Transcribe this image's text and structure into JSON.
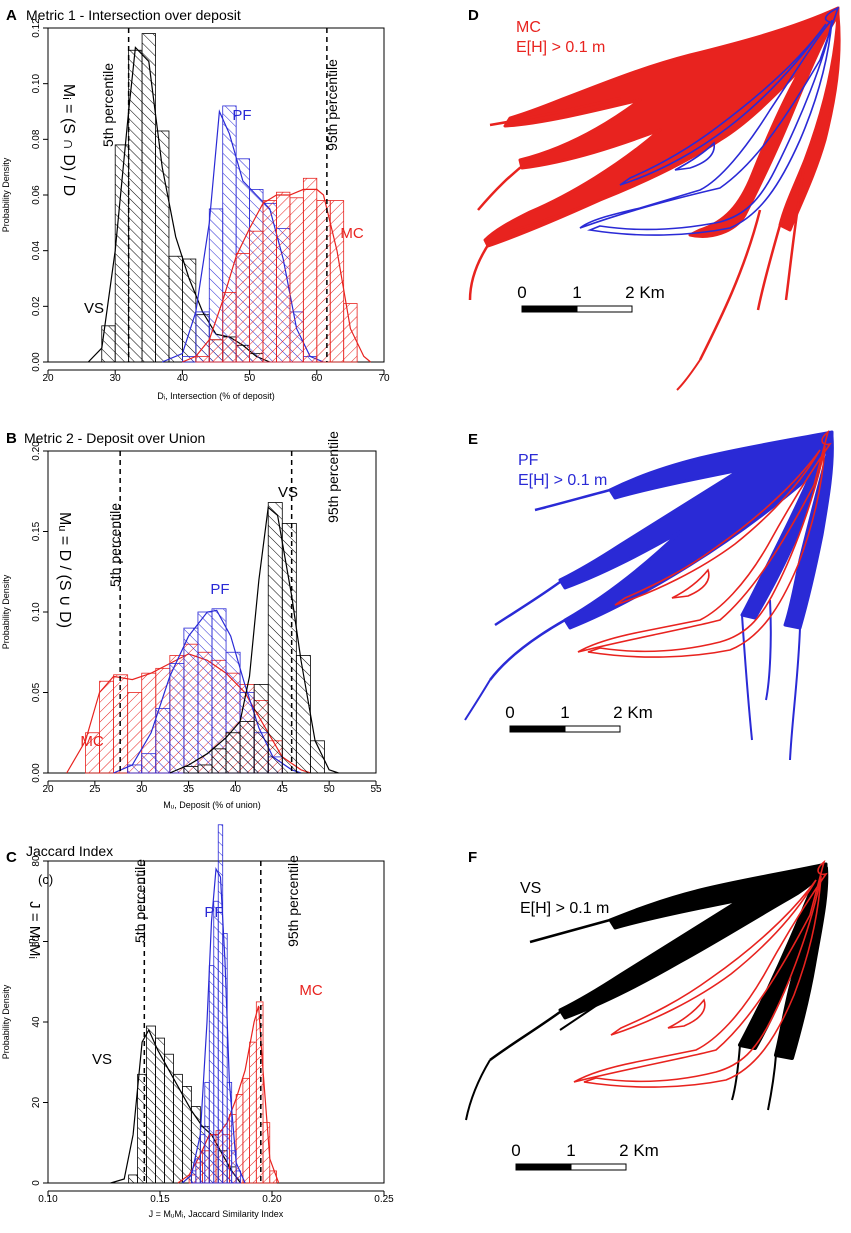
{
  "colors": {
    "MC": "#e8231f",
    "PF": "#2a2ad6",
    "VS": "#000000",
    "axis": "#000000",
    "dash": "#000000"
  },
  "chart_data": [
    {
      "panel": "A",
      "type": "histogram",
      "title": "Metric 1 - Intersection over deposit",
      "formula": "Mᵢ = (S ∩ D) / D",
      "xlabel": "Dᵢ, Intersection (% of deposit)",
      "ylabel": "Probability Density",
      "xlim": [
        20,
        70
      ],
      "ylim": [
        0,
        0.12
      ],
      "xticks": [
        "20",
        "30",
        "40",
        "50",
        "60",
        "70"
      ],
      "yticks": [
        "0.00",
        "0.02",
        "0.04",
        "0.06",
        "0.08",
        "0.10",
        "0.12"
      ],
      "percentiles": [
        {
          "label": "5th percentile",
          "value": 32
        },
        {
          "label": "95th percentile",
          "value": 61.5
        }
      ],
      "series": [
        {
          "name": "VS",
          "bin_width": 2,
          "bins": [
            [
              28,
              0.013
            ],
            [
              30,
              0.078
            ],
            [
              32,
              0.112
            ],
            [
              34,
              0.118
            ],
            [
              36,
              0.083
            ],
            [
              38,
              0.038
            ],
            [
              40,
              0.037
            ],
            [
              42,
              0.017
            ],
            [
              44,
              0.008
            ],
            [
              46,
              0.009
            ],
            [
              48,
              0.006
            ],
            [
              50,
              0.003
            ]
          ],
          "curve": [
            [
              26,
              0
            ],
            [
              28,
              0.005
            ],
            [
              30,
              0.04
            ],
            [
              32,
              0.09
            ],
            [
              33,
              0.113
            ],
            [
              35,
              0.108
            ],
            [
              37,
              0.07
            ],
            [
              39,
              0.045
            ],
            [
              41,
              0.03
            ],
            [
              43,
              0.018
            ],
            [
              45,
              0.01
            ],
            [
              47,
              0.009
            ],
            [
              49,
              0.006
            ],
            [
              51,
              0.002
            ],
            [
              53,
              0
            ]
          ]
        },
        {
          "name": "PF",
          "bin_width": 2,
          "bins": [
            [
              40,
              0.002
            ],
            [
              42,
              0.018
            ],
            [
              44,
              0.055
            ],
            [
              46,
              0.092
            ],
            [
              48,
              0.073
            ],
            [
              50,
              0.062
            ],
            [
              52,
              0.057
            ],
            [
              54,
              0.048
            ],
            [
              56,
              0.018
            ],
            [
              58,
              0.002
            ]
          ],
          "curve": [
            [
              37,
              0
            ],
            [
              40,
              0.003
            ],
            [
              42,
              0.018
            ],
            [
              44,
              0.05
            ],
            [
              45.5,
              0.09
            ],
            [
              47,
              0.082
            ],
            [
              49,
              0.065
            ],
            [
              51,
              0.06
            ],
            [
              53,
              0.055
            ],
            [
              55,
              0.037
            ],
            [
              57,
              0.012
            ],
            [
              59,
              0.002
            ],
            [
              61,
              0
            ]
          ]
        },
        {
          "name": "MC",
          "bin_width": 2,
          "bins": [
            [
              42,
              0.002
            ],
            [
              44,
              0.008
            ],
            [
              46,
              0.025
            ],
            [
              48,
              0.039
            ],
            [
              50,
              0.047
            ],
            [
              52,
              0.058
            ],
            [
              54,
              0.061
            ],
            [
              56,
              0.059
            ],
            [
              58,
              0.066
            ],
            [
              60,
              0.058
            ],
            [
              62,
              0.058
            ],
            [
              64,
              0.021
            ]
          ],
          "curve": [
            [
              40,
              0
            ],
            [
              42,
              0.002
            ],
            [
              44,
              0.008
            ],
            [
              46,
              0.022
            ],
            [
              48,
              0.038
            ],
            [
              50,
              0.048
            ],
            [
              52,
              0.057
            ],
            [
              54,
              0.06
            ],
            [
              56,
              0.06
            ],
            [
              58,
              0.062
            ],
            [
              60,
              0.062
            ],
            [
              61,
              0.06
            ],
            [
              63,
              0.04
            ],
            [
              65,
              0.012
            ],
            [
              67,
              0.002
            ],
            [
              68,
              0
            ]
          ]
        }
      ],
      "labels": [
        "VS",
        "PF",
        "MC"
      ]
    },
    {
      "panel": "B",
      "type": "histogram",
      "title": "Metric 2 - Deposit over Union",
      "formula": "Mᵤ = D / (S ∪ D)",
      "xlabel": "Mᵤ, Deposit (% of union)",
      "ylabel": "Probability Density",
      "xlim": [
        20,
        55
      ],
      "ylim": [
        0,
        0.2
      ],
      "xticks": [
        "20",
        "25",
        "30",
        "35",
        "40",
        "45",
        "50",
        "55"
      ],
      "yticks": [
        "0.00",
        "0.05",
        "0.10",
        "0.15",
        "0.20"
      ],
      "percentiles": [
        {
          "label": "5th percentile",
          "value": 27.7
        },
        {
          "label": "95th percentile",
          "value": 46
        }
      ],
      "series": [
        {
          "name": "MC",
          "bin_width": 1.5,
          "bins": [
            [
              24,
              0.025
            ],
            [
              25.5,
              0.057
            ],
            [
              27,
              0.061
            ],
            [
              28.5,
              0.05
            ],
            [
              30,
              0.062
            ],
            [
              31.5,
              0.065
            ],
            [
              33,
              0.073
            ],
            [
              34.5,
              0.08
            ],
            [
              36,
              0.075
            ],
            [
              37.5,
              0.07
            ],
            [
              39,
              0.062
            ],
            [
              40.5,
              0.055
            ],
            [
              42,
              0.045
            ],
            [
              43.5,
              0.02
            ]
          ],
          "curve": [
            [
              22,
              0
            ],
            [
              24,
              0.02
            ],
            [
              25.5,
              0.05
            ],
            [
              27,
              0.06
            ],
            [
              29,
              0.058
            ],
            [
              31,
              0.062
            ],
            [
              33,
              0.068
            ],
            [
              35,
              0.074
            ],
            [
              37,
              0.07
            ],
            [
              39,
              0.062
            ],
            [
              41,
              0.05
            ],
            [
              43,
              0.03
            ],
            [
              45,
              0.01
            ],
            [
              47,
              0.002
            ],
            [
              48,
              0
            ]
          ]
        },
        {
          "name": "PF",
          "bin_width": 1.5,
          "bins": [
            [
              28.5,
              0.005
            ],
            [
              30,
              0.012
            ],
            [
              31.5,
              0.04
            ],
            [
              33,
              0.068
            ],
            [
              34.5,
              0.09
            ],
            [
              36,
              0.1
            ],
            [
              37.5,
              0.102
            ],
            [
              39,
              0.075
            ],
            [
              40.5,
              0.05
            ],
            [
              42,
              0.025
            ],
            [
              43.5,
              0.01
            ]
          ],
          "curve": [
            [
              27,
              0
            ],
            [
              29,
              0.005
            ],
            [
              31,
              0.025
            ],
            [
              33,
              0.06
            ],
            [
              35,
              0.085
            ],
            [
              37,
              0.1
            ],
            [
              38,
              0.101
            ],
            [
              39.5,
              0.085
            ],
            [
              41,
              0.055
            ],
            [
              42.5,
              0.028
            ],
            [
              44,
              0.01
            ],
            [
              46,
              0.002
            ],
            [
              47,
              0
            ]
          ]
        },
        {
          "name": "VS",
          "bin_width": 1.5,
          "bins": [
            [
              34.5,
              0.004
            ],
            [
              36,
              0.005
            ],
            [
              37.5,
              0.015
            ],
            [
              39,
              0.025
            ],
            [
              40.5,
              0.032
            ],
            [
              42,
              0.055
            ],
            [
              43.5,
              0.168
            ],
            [
              45,
              0.155
            ],
            [
              46.5,
              0.073
            ],
            [
              48,
              0.02
            ]
          ],
          "curve": [
            [
              33,
              0
            ],
            [
              35,
              0.005
            ],
            [
              37,
              0.012
            ],
            [
              39,
              0.022
            ],
            [
              40.5,
              0.032
            ],
            [
              41.5,
              0.06
            ],
            [
              42.5,
              0.12
            ],
            [
              43.5,
              0.165
            ],
            [
              44.5,
              0.16
            ],
            [
              46,
              0.11
            ],
            [
              47,
              0.07
            ],
            [
              48.5,
              0.02
            ],
            [
              50,
              0.002
            ],
            [
              51,
              0
            ]
          ]
        }
      ],
      "labels": [
        "MC",
        "PF",
        "VS"
      ]
    },
    {
      "panel": "C",
      "type": "histogram",
      "title": "Jaccard Index",
      "subtitle": "(c)",
      "formula": "J = MᵤMᵢ",
      "xlabel": "J = MᵤMᵢ,  Jaccard Similarity Index",
      "ylabel": "Probability Density",
      "xlim": [
        0.1,
        0.25
      ],
      "ylim": [
        0,
        80
      ],
      "xticks": [
        "0.10",
        "0.15",
        "0.20",
        "0.25"
      ],
      "yticks": [
        "0",
        "20",
        "40",
        "60",
        "80"
      ],
      "percentiles": [
        {
          "label": "5th percentile",
          "value": 0.143
        },
        {
          "label": "95th percentile",
          "value": 0.195
        }
      ],
      "series": [
        {
          "name": "VS",
          "bin_width": 0.004,
          "bins": [
            [
              0.136,
              2
            ],
            [
              0.14,
              27
            ],
            [
              0.144,
              39
            ],
            [
              0.148,
              36
            ],
            [
              0.152,
              32
            ],
            [
              0.156,
              27
            ],
            [
              0.16,
              24
            ],
            [
              0.164,
              19
            ],
            [
              0.168,
              14
            ],
            [
              0.172,
              12
            ],
            [
              0.176,
              8
            ],
            [
              0.18,
              4
            ]
          ],
          "curve": [
            [
              0.128,
              0
            ],
            [
              0.134,
              1
            ],
            [
              0.138,
              12
            ],
            [
              0.142,
              35
            ],
            [
              0.145,
              38
            ],
            [
              0.149,
              33
            ],
            [
              0.154,
              28
            ],
            [
              0.159,
              23
            ],
            [
              0.164,
              18
            ],
            [
              0.169,
              14
            ],
            [
              0.173,
              12
            ],
            [
              0.177,
              8
            ],
            [
              0.182,
              3
            ],
            [
              0.186,
              0
            ]
          ]
        },
        {
          "name": "MC",
          "bin_width": 0.003,
          "bins": [
            [
              0.163,
              2
            ],
            [
              0.166,
              5
            ],
            [
              0.169,
              8
            ],
            [
              0.172,
              12
            ],
            [
              0.175,
              13
            ],
            [
              0.178,
              12
            ],
            [
              0.181,
              17
            ],
            [
              0.184,
              22
            ],
            [
              0.187,
              26
            ],
            [
              0.19,
              35
            ],
            [
              0.193,
              45
            ],
            [
              0.196,
              15
            ],
            [
              0.199,
              3
            ]
          ],
          "curve": [
            [
              0.158,
              0
            ],
            [
              0.163,
              2
            ],
            [
              0.168,
              7
            ],
            [
              0.172,
              12
            ],
            [
              0.176,
              12
            ],
            [
              0.18,
              15
            ],
            [
              0.184,
              21
            ],
            [
              0.188,
              28
            ],
            [
              0.192,
              40
            ],
            [
              0.194,
              44
            ],
            [
              0.196,
              28
            ],
            [
              0.199,
              6
            ],
            [
              0.203,
              0
            ]
          ]
        },
        {
          "name": "PF",
          "bin_width": 0.002,
          "bins": [
            [
              0.164,
              3
            ],
            [
              0.166,
              6
            ],
            [
              0.168,
              12
            ],
            [
              0.17,
              25
            ],
            [
              0.172,
              54
            ],
            [
              0.174,
              70
            ],
            [
              0.176,
              89
            ],
            [
              0.178,
              62
            ],
            [
              0.18,
              25
            ],
            [
              0.182,
              8
            ],
            [
              0.184,
              3
            ]
          ],
          "curve": [
            [
              0.16,
              0
            ],
            [
              0.164,
              2
            ],
            [
              0.168,
              12
            ],
            [
              0.171,
              40
            ],
            [
              0.173,
              65
            ],
            [
              0.175,
              78
            ],
            [
              0.177,
              76
            ],
            [
              0.179,
              55
            ],
            [
              0.181,
              25
            ],
            [
              0.184,
              5
            ],
            [
              0.188,
              0
            ]
          ]
        }
      ],
      "labels": [
        "VS",
        "PF",
        "MC"
      ]
    }
  ],
  "maps": [
    {
      "panel": "D",
      "title": "MC",
      "subtitle": "E[H] > 0.1 m",
      "fill_series": "MC",
      "outline_series": "PF",
      "scale_labels": [
        "0",
        "1",
        "2 Km"
      ]
    },
    {
      "panel": "E",
      "title": "PF",
      "subtitle": "E[H] > 0.1 m",
      "fill_series": "PF",
      "outline_series": "MC",
      "scale_labels": [
        "0",
        "1",
        "2 Km"
      ]
    },
    {
      "panel": "F",
      "title": "VS",
      "subtitle": "E[H] > 0.1 m",
      "fill_series": "VS",
      "outline_series": "MC",
      "scale_labels": [
        "0",
        "1",
        "2 Km"
      ]
    }
  ]
}
